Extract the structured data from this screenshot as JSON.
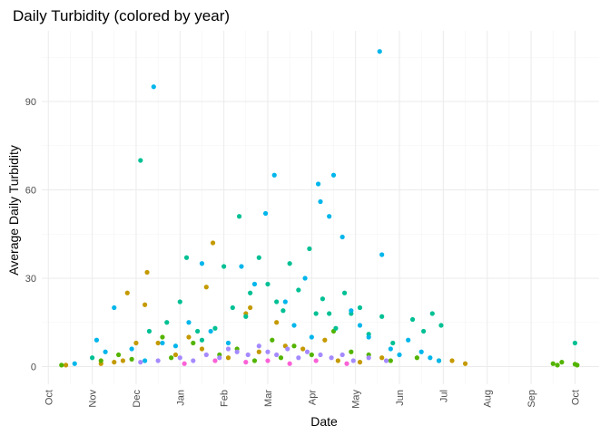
{
  "chart_data": {
    "type": "scatter",
    "title": "Daily Turbidity (colored by year)",
    "xlabel": "Date",
    "ylabel": "Average Daily Turbidity",
    "x_ticks": [
      "Oct",
      "Nov",
      "Dec",
      "Jan",
      "Feb",
      "Mar",
      "Apr",
      "May",
      "Jun",
      "Jul",
      "Aug",
      "Sep",
      "Oct"
    ],
    "y_ticks": [
      0,
      30,
      60,
      90
    ],
    "ylim": [
      -6,
      114
    ],
    "xlim_months": [
      -0.15,
      12.55
    ],
    "grid": true,
    "legend": "none",
    "series": [
      {
        "color": "#C49A00",
        "points": [
          [
            0.4,
            0.5
          ],
          [
            1.7,
            2
          ],
          [
            1.8,
            25
          ],
          [
            2.0,
            8
          ],
          [
            2.2,
            21
          ],
          [
            2.25,
            32
          ],
          [
            2.5,
            8
          ],
          [
            3.2,
            10
          ],
          [
            3.5,
            6
          ],
          [
            3.6,
            27
          ],
          [
            3.75,
            42
          ],
          [
            4.1,
            3
          ],
          [
            4.5,
            18
          ],
          [
            4.8,
            5
          ],
          [
            5.2,
            15
          ],
          [
            5.4,
            7
          ],
          [
            5.8,
            6
          ],
          [
            6.3,
            9
          ],
          [
            6.6,
            2
          ],
          [
            7.1,
            1.5
          ],
          [
            7.6,
            3
          ],
          [
            9.2,
            2
          ],
          [
            9.5,
            1
          ],
          [
            1.2,
            1
          ],
          [
            1.5,
            1.5
          ],
          [
            2.9,
            4
          ],
          [
            4.6,
            20
          ]
        ]
      },
      {
        "color": "#53B400",
        "points": [
          [
            0.3,
            0.5
          ],
          [
            1.2,
            2
          ],
          [
            1.6,
            4
          ],
          [
            1.9,
            2.5
          ],
          [
            2.6,
            10
          ],
          [
            2.8,
            3
          ],
          [
            3.3,
            8
          ],
          [
            3.9,
            4
          ],
          [
            4.3,
            6
          ],
          [
            4.7,
            2
          ],
          [
            5.1,
            9
          ],
          [
            5.3,
            3
          ],
          [
            5.6,
            7
          ],
          [
            6.0,
            4
          ],
          [
            6.5,
            12
          ],
          [
            6.9,
            5
          ],
          [
            7.3,
            4
          ],
          [
            7.8,
            2
          ],
          [
            8.4,
            3
          ],
          [
            8.9,
            2
          ],
          [
            11.5,
            1
          ],
          [
            11.6,
            0.5
          ],
          [
            11.7,
            1.5
          ],
          [
            12.0,
            0.8
          ],
          [
            12.05,
            0.5
          ]
        ]
      },
      {
        "color": "#00C094",
        "points": [
          [
            1.0,
            3
          ],
          [
            2.1,
            70
          ],
          [
            2.3,
            12
          ],
          [
            2.7,
            15
          ],
          [
            3.0,
            22
          ],
          [
            3.15,
            37
          ],
          [
            3.4,
            12
          ],
          [
            3.5,
            9
          ],
          [
            3.8,
            13
          ],
          [
            4.0,
            34
          ],
          [
            4.2,
            20
          ],
          [
            4.35,
            51
          ],
          [
            4.5,
            17
          ],
          [
            4.6,
            25
          ],
          [
            4.8,
            37
          ],
          [
            5.0,
            28
          ],
          [
            5.2,
            22
          ],
          [
            5.35,
            19
          ],
          [
            5.5,
            35
          ],
          [
            5.7,
            26
          ],
          [
            5.95,
            40
          ],
          [
            6.1,
            18
          ],
          [
            6.25,
            23
          ],
          [
            6.4,
            18
          ],
          [
            6.55,
            13
          ],
          [
            6.75,
            25
          ],
          [
            6.9,
            18
          ],
          [
            7.1,
            20
          ],
          [
            7.3,
            11
          ],
          [
            7.6,
            17
          ],
          [
            7.85,
            8
          ],
          [
            8.3,
            16
          ],
          [
            8.55,
            12
          ],
          [
            8.75,
            18
          ],
          [
            8.95,
            14
          ],
          [
            12.0,
            8
          ]
        ]
      },
      {
        "color": "#00B6EB",
        "points": [
          [
            0.6,
            1
          ],
          [
            1.1,
            9
          ],
          [
            1.3,
            5
          ],
          [
            1.5,
            20
          ],
          [
            1.9,
            6
          ],
          [
            2.2,
            2
          ],
          [
            2.4,
            95
          ],
          [
            2.6,
            8
          ],
          [
            2.9,
            7
          ],
          [
            3.2,
            15
          ],
          [
            3.5,
            35
          ],
          [
            3.7,
            12
          ],
          [
            4.1,
            8
          ],
          [
            4.4,
            34
          ],
          [
            4.7,
            28
          ],
          [
            4.95,
            52
          ],
          [
            5.15,
            65
          ],
          [
            5.4,
            22
          ],
          [
            5.6,
            14
          ],
          [
            5.85,
            30
          ],
          [
            6.0,
            10
          ],
          [
            6.15,
            62
          ],
          [
            6.2,
            56
          ],
          [
            6.4,
            51
          ],
          [
            6.5,
            65
          ],
          [
            6.7,
            44
          ],
          [
            6.9,
            19
          ],
          [
            7.1,
            14
          ],
          [
            7.3,
            10
          ],
          [
            7.55,
            107
          ],
          [
            7.6,
            38
          ],
          [
            7.8,
            6
          ],
          [
            8.0,
            4
          ],
          [
            8.2,
            9
          ],
          [
            8.5,
            5
          ],
          [
            8.7,
            3
          ],
          [
            8.9,
            2
          ]
        ]
      },
      {
        "color": "#A58AFF",
        "points": [
          [
            2.1,
            1.5
          ],
          [
            2.5,
            2
          ],
          [
            3.0,
            3
          ],
          [
            3.3,
            2
          ],
          [
            3.6,
            4
          ],
          [
            3.9,
            3
          ],
          [
            4.1,
            6
          ],
          [
            4.3,
            5
          ],
          [
            4.55,
            4
          ],
          [
            4.8,
            7
          ],
          [
            5.0,
            5
          ],
          [
            5.2,
            4
          ],
          [
            5.45,
            6
          ],
          [
            5.7,
            3
          ],
          [
            5.9,
            5
          ],
          [
            6.2,
            4
          ],
          [
            6.45,
            3
          ],
          [
            6.7,
            4
          ],
          [
            6.95,
            2
          ],
          [
            7.3,
            3
          ],
          [
            7.7,
            2
          ]
        ]
      },
      {
        "color": "#FB61D7",
        "points": [
          [
            3.1,
            1
          ],
          [
            3.8,
            2
          ],
          [
            4.5,
            1.5
          ],
          [
            5.0,
            2
          ],
          [
            5.5,
            1
          ],
          [
            6.1,
            2
          ],
          [
            6.8,
            1
          ]
        ]
      }
    ]
  }
}
